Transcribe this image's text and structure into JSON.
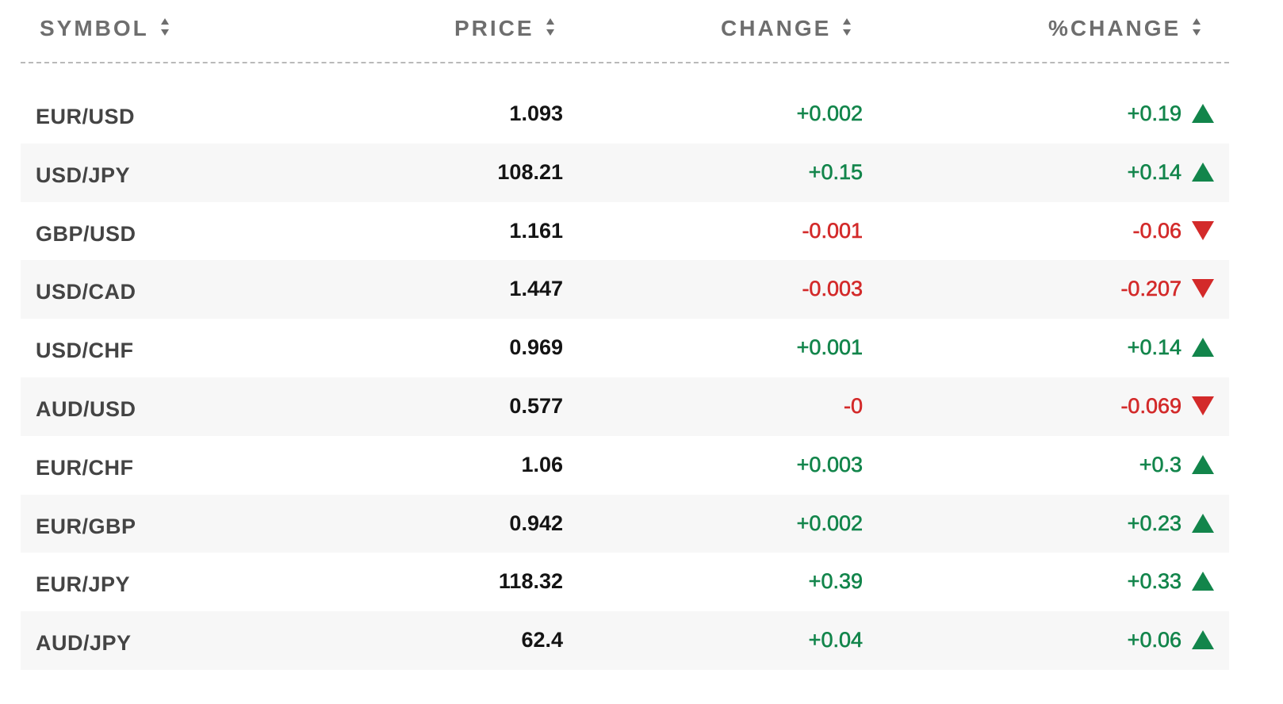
{
  "header": {
    "symbol": "SYMBOL",
    "price": "PRICE",
    "change": "CHANGE",
    "pct_change": "%CHANGE",
    "sort_icon": "sort-updown-icon"
  },
  "colors": {
    "up": "#12854b",
    "down": "#d32a2a",
    "header_text": "#6e6e6e",
    "row_alt_bg": "#f7f7f7"
  },
  "rows": [
    {
      "symbol": "EUR/USD",
      "price": "1.093",
      "change": "+0.002",
      "pct_change": "+0.19",
      "direction": "up",
      "icon": "arrow-up-icon"
    },
    {
      "symbol": "USD/JPY",
      "price": "108.21",
      "change": "+0.15",
      "pct_change": "+0.14",
      "direction": "up",
      "icon": "arrow-up-icon"
    },
    {
      "symbol": "GBP/USD",
      "price": "1.161",
      "change": "-0.001",
      "pct_change": "-0.06",
      "direction": "down",
      "icon": "arrow-down-icon"
    },
    {
      "symbol": "USD/CAD",
      "price": "1.447",
      "change": "-0.003",
      "pct_change": "-0.207",
      "direction": "down",
      "icon": "arrow-down-icon"
    },
    {
      "symbol": "USD/CHF",
      "price": "0.969",
      "change": "+0.001",
      "pct_change": "+0.14",
      "direction": "up",
      "icon": "arrow-up-icon"
    },
    {
      "symbol": "AUD/USD",
      "price": "0.577",
      "change": "-0",
      "pct_change": "-0.069",
      "direction": "down",
      "icon": "arrow-down-icon"
    },
    {
      "symbol": "EUR/CHF",
      "price": "1.06",
      "change": "+0.003",
      "pct_change": "+0.3",
      "direction": "up",
      "icon": "arrow-up-icon"
    },
    {
      "symbol": "EUR/GBP",
      "price": "0.942",
      "change": "+0.002",
      "pct_change": "+0.23",
      "direction": "up",
      "icon": "arrow-up-icon"
    },
    {
      "symbol": "EUR/JPY",
      "price": "118.32",
      "change": "+0.39",
      "pct_change": "+0.33",
      "direction": "up",
      "icon": "arrow-up-icon"
    },
    {
      "symbol": "AUD/JPY",
      "price": "62.4",
      "change": "+0.04",
      "pct_change": "+0.06",
      "direction": "up",
      "icon": "arrow-up-icon"
    }
  ]
}
